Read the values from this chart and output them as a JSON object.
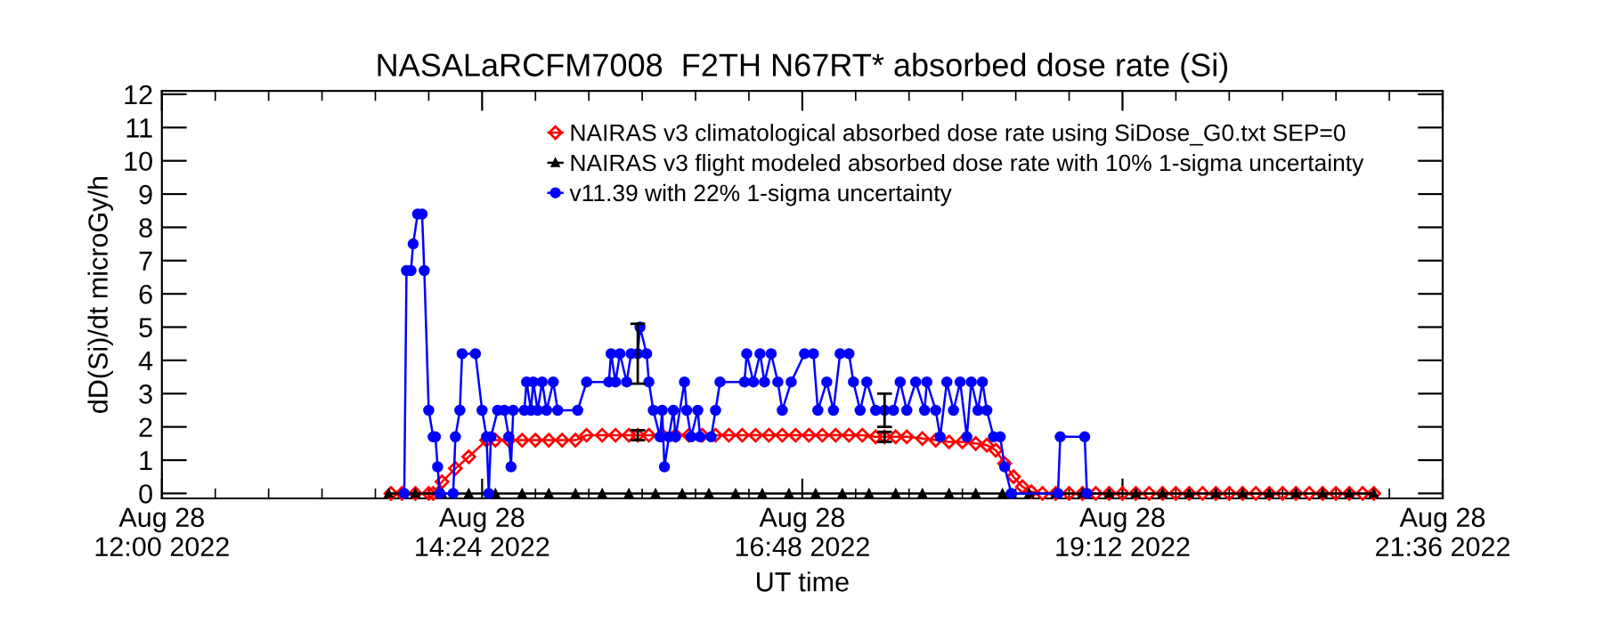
{
  "chart_data": {
    "type": "line",
    "title": "NASALaRCFM7008  F2TH N67RT* absorbed dose rate (Si)",
    "xlabel": "UT time",
    "ylabel": "dD(Si)/dt microGy/h",
    "xlim": [
      "2022-08-28T12:00",
      "2022-08-28T21:36"
    ],
    "xticks": [
      {
        "value": "2022-08-28T12:00",
        "label": "Aug 28\n12:00 2022"
      },
      {
        "value": "2022-08-28T14:24",
        "label": "Aug 28\n14:24 2022"
      },
      {
        "value": "2022-08-28T16:48",
        "label": "Aug 28\n16:48 2022"
      },
      {
        "value": "2022-08-28T19:12",
        "label": "Aug 28\n19:12 2022"
      },
      {
        "value": "2022-08-28T21:36",
        "label": "Aug 28\n21:36 2022"
      }
    ],
    "ylim": [
      -0.15,
      12.1
    ],
    "yticks": [
      0,
      1,
      2,
      3,
      4,
      5,
      6,
      7,
      8,
      9,
      10,
      11,
      12
    ],
    "grid": false,
    "legend": "top",
    "series": [
      {
        "name": "NAIRAS v3 climatological absorbed dose rate using SiDose_G0.txt SEP=0",
        "color": "#ff0000",
        "marker": "diamond",
        "x": [
          "2022-08-28T13:43",
          "2022-08-28T13:48",
          "2022-08-28T13:54",
          "2022-08-28T14:00",
          "2022-08-28T14:02",
          "2022-08-28T14:06",
          "2022-08-28T14:12",
          "2022-08-28T14:18",
          "2022-08-28T14:26",
          "2022-08-28T14:30",
          "2022-08-28T14:36",
          "2022-08-28T14:42",
          "2022-08-28T14:48",
          "2022-08-28T14:54",
          "2022-08-28T15:00",
          "2022-08-28T15:06",
          "2022-08-28T15:11",
          "2022-08-28T15:18",
          "2022-08-28T15:24",
          "2022-08-28T15:30",
          "2022-08-28T15:34",
          "2022-08-28T15:39",
          "2022-08-28T15:45",
          "2022-08-28T15:51",
          "2022-08-28T15:57",
          "2022-08-28T16:03",
          "2022-08-28T16:09",
          "2022-08-28T16:15",
          "2022-08-28T16:21",
          "2022-08-28T16:27",
          "2022-08-28T16:33",
          "2022-08-28T16:39",
          "2022-08-28T16:45",
          "2022-08-28T16:51",
          "2022-08-28T16:57",
          "2022-08-28T17:03",
          "2022-08-28T17:09",
          "2022-08-28T17:15",
          "2022-08-28T17:21",
          "2022-08-28T17:25",
          "2022-08-28T17:30",
          "2022-08-28T17:35",
          "2022-08-28T17:42",
          "2022-08-28T17:48",
          "2022-08-28T17:54",
          "2022-08-28T18:00",
          "2022-08-28T18:06",
          "2022-08-28T18:11",
          "2022-08-28T18:15",
          "2022-08-28T18:19",
          "2022-08-28T18:23",
          "2022-08-28T18:27",
          "2022-08-28T18:31",
          "2022-08-28T18:36",
          "2022-08-28T18:42",
          "2022-08-28T18:48",
          "2022-08-28T18:54",
          "2022-08-28T19:00",
          "2022-08-28T19:06",
          "2022-08-28T19:12",
          "2022-08-28T19:18",
          "2022-08-28T19:24",
          "2022-08-28T19:30",
          "2022-08-28T19:36",
          "2022-08-28T19:42",
          "2022-08-28T19:48",
          "2022-08-28T19:54",
          "2022-08-28T20:00",
          "2022-08-28T20:06",
          "2022-08-28T20:12",
          "2022-08-28T20:18",
          "2022-08-28T20:24",
          "2022-08-28T20:30",
          "2022-08-28T20:36",
          "2022-08-28T20:42",
          "2022-08-28T20:48",
          "2022-08-28T20:54",
          "2022-08-28T21:00",
          "2022-08-28T21:05"
        ],
        "values": [
          0,
          0,
          0,
          0,
          0,
          0.35,
          0.75,
          1.1,
          1.6,
          1.6,
          1.6,
          1.6,
          1.6,
          1.6,
          1.6,
          1.6,
          1.75,
          1.75,
          1.75,
          1.75,
          1.75,
          1.75,
          1.75,
          1.75,
          1.75,
          1.75,
          1.75,
          1.75,
          1.75,
          1.75,
          1.75,
          1.75,
          1.75,
          1.75,
          1.75,
          1.75,
          1.75,
          1.75,
          1.7,
          1.7,
          1.7,
          1.7,
          1.65,
          1.6,
          1.55,
          1.55,
          1.5,
          1.45,
          1.3,
          0.9,
          0.5,
          0.2,
          0.05,
          0,
          0,
          0,
          0,
          0,
          0,
          0,
          0,
          0,
          0,
          0,
          0,
          0,
          0,
          0,
          0,
          0,
          0,
          0,
          0,
          0,
          0,
          0,
          0,
          0,
          0
        ],
        "errors": [
          null,
          null,
          null,
          null,
          null,
          null,
          null,
          null,
          null,
          null,
          null,
          null,
          null,
          null,
          null,
          null,
          null,
          null,
          null,
          null,
          0.15,
          null,
          null,
          null,
          null,
          null,
          null,
          null,
          null,
          null,
          null,
          null,
          null,
          null,
          null,
          null,
          null,
          null,
          null,
          0.15,
          null,
          null,
          null,
          null,
          null,
          null,
          null,
          null,
          null,
          null,
          null,
          null,
          null,
          null,
          null,
          null,
          null,
          null,
          null,
          null,
          null,
          null,
          null,
          null,
          null,
          null,
          null,
          null,
          null,
          null,
          null,
          null,
          null,
          null,
          null,
          null,
          null,
          null,
          null
        ]
      },
      {
        "name": "NAIRAS v3 flight modeled absorbed dose rate with 10% 1-sigma uncertainty",
        "color": "#000000",
        "marker": "triangle",
        "x": [
          "2022-08-28T13:42",
          "2022-08-28T13:54",
          "2022-08-28T14:06",
          "2022-08-28T14:18",
          "2022-08-28T14:30",
          "2022-08-28T14:42",
          "2022-08-28T14:54",
          "2022-08-28T15:06",
          "2022-08-28T15:18",
          "2022-08-28T15:30",
          "2022-08-28T15:42",
          "2022-08-28T15:54",
          "2022-08-28T16:06",
          "2022-08-28T16:18",
          "2022-08-28T16:30",
          "2022-08-28T16:42",
          "2022-08-28T16:54",
          "2022-08-28T17:06",
          "2022-08-28T17:18",
          "2022-08-28T17:30",
          "2022-08-28T17:42",
          "2022-08-28T17:54",
          "2022-08-28T18:06",
          "2022-08-28T18:18",
          "2022-08-28T18:30",
          "2022-08-28T18:42",
          "2022-08-28T18:54",
          "2022-08-28T19:06",
          "2022-08-28T19:18",
          "2022-08-28T19:30",
          "2022-08-28T19:42",
          "2022-08-28T19:54",
          "2022-08-28T20:06",
          "2022-08-28T20:18",
          "2022-08-28T20:30",
          "2022-08-28T20:42",
          "2022-08-28T20:54",
          "2022-08-28T21:05"
        ],
        "values": [
          0,
          0,
          0,
          0,
          0,
          0,
          0,
          0,
          0,
          0,
          0,
          0,
          0,
          0,
          0,
          0,
          0,
          0,
          0,
          0,
          0,
          0,
          0,
          0,
          0,
          0,
          0,
          0,
          0,
          0,
          0,
          0,
          0,
          0,
          0,
          0,
          0,
          0
        ]
      },
      {
        "name": "v11.39 with 22% 1-sigma uncertainty",
        "color": "#0000ff",
        "marker": "circle",
        "x": [
          "2022-08-28T13:49",
          "2022-08-28T13:50",
          "2022-08-28T13:52",
          "2022-08-28T13:53",
          "2022-08-28T13:55",
          "2022-08-28T13:57",
          "2022-08-28T13:58",
          "2022-08-28T14:00",
          "2022-08-28T14:02",
          "2022-08-28T14:03",
          "2022-08-28T14:04",
          "2022-08-28T14:05",
          "2022-08-28T14:11",
          "2022-08-28T14:12",
          "2022-08-28T14:14",
          "2022-08-28T14:15",
          "2022-08-28T14:21",
          "2022-08-28T14:24",
          "2022-08-28T14:26",
          "2022-08-28T14:27",
          "2022-08-28T14:28",
          "2022-08-28T14:31",
          "2022-08-28T14:34",
          "2022-08-28T14:36",
          "2022-08-28T14:37",
          "2022-08-28T14:38",
          "2022-08-28T14:43",
          "2022-08-28T14:44",
          "2022-08-28T14:46",
          "2022-08-28T14:47",
          "2022-08-28T14:49",
          "2022-08-28T14:51",
          "2022-08-28T14:53",
          "2022-08-28T14:56",
          "2022-08-28T14:58",
          "2022-08-28T15:07",
          "2022-08-28T15:11",
          "2022-08-28T15:21",
          "2022-08-28T15:22",
          "2022-08-28T15:24",
          "2022-08-28T15:26",
          "2022-08-28T15:29",
          "2022-08-28T15:31",
          "2022-08-28T15:34",
          "2022-08-28T15:35",
          "2022-08-28T15:38",
          "2022-08-28T15:39",
          "2022-08-28T15:41",
          "2022-08-28T15:44",
          "2022-08-28T15:45",
          "2022-08-28T15:46",
          "2022-08-28T15:48",
          "2022-08-28T15:50",
          "2022-08-28T15:51",
          "2022-08-28T15:55",
          "2022-08-28T15:56",
          "2022-08-28T15:58",
          "2022-08-28T16:01",
          "2022-08-28T16:02",
          "2022-08-28T16:07",
          "2022-08-28T16:09",
          "2022-08-28T16:11",
          "2022-08-28T16:22",
          "2022-08-28T16:23",
          "2022-08-28T16:26",
          "2022-08-28T16:29",
          "2022-08-28T16:31",
          "2022-08-28T16:34",
          "2022-08-28T16:37",
          "2022-08-28T16:39",
          "2022-08-28T16:43",
          "2022-08-28T16:49",
          "2022-08-28T16:53",
          "2022-08-28T16:55",
          "2022-08-28T16:59",
          "2022-08-28T17:02",
          "2022-08-28T17:05",
          "2022-08-28T17:09",
          "2022-08-28T17:11",
          "2022-08-28T17:14",
          "2022-08-28T17:17",
          "2022-08-28T17:21",
          "2022-08-28T17:25",
          "2022-08-28T17:29",
          "2022-08-28T17:32",
          "2022-08-28T17:35",
          "2022-08-28T17:39",
          "2022-08-28T17:43",
          "2022-08-28T17:44",
          "2022-08-28T17:48",
          "2022-08-28T17:50",
          "2022-08-28T17:53",
          "2022-08-28T17:56",
          "2022-08-28T17:59",
          "2022-08-28T18:02",
          "2022-08-28T18:04",
          "2022-08-28T18:07",
          "2022-08-28T18:09",
          "2022-08-28T18:11",
          "2022-08-28T18:14",
          "2022-08-28T18:17",
          "2022-08-28T18:19",
          "2022-08-28T18:22",
          "2022-08-28T18:43",
          "2022-08-28T18:44",
          "2022-08-28T18:55",
          "2022-08-28T18:56"
        ],
        "values": [
          0,
          6.7,
          6.7,
          7.5,
          8.4,
          8.4,
          6.7,
          2.5,
          1.7,
          1.7,
          0.8,
          0,
          0,
          1.7,
          2.5,
          4.2,
          4.2,
          2.5,
          1.7,
          0,
          1.7,
          2.5,
          2.5,
          1.7,
          0.8,
          2.5,
          2.5,
          3.35,
          2.5,
          3.35,
          2.5,
          3.35,
          2.5,
          3.35,
          2.5,
          2.5,
          3.35,
          3.35,
          4.2,
          3.35,
          4.2,
          3.35,
          4.2,
          4.2,
          5.0,
          4.2,
          3.35,
          2.5,
          1.7,
          2.5,
          0.8,
          1.7,
          2.5,
          1.7,
          3.35,
          2.5,
          1.7,
          2.5,
          1.7,
          1.7,
          2.5,
          3.35,
          3.35,
          4.2,
          3.35,
          4.2,
          3.35,
          4.2,
          3.35,
          2.5,
          3.35,
          4.2,
          4.2,
          2.5,
          3.35,
          2.5,
          4.2,
          4.2,
          3.35,
          2.5,
          3.35,
          2.5,
          2.5,
          2.5,
          3.35,
          2.5,
          3.35,
          2.5,
          3.35,
          2.5,
          1.7,
          3.35,
          2.5,
          3.35,
          1.7,
          3.35,
          2.5,
          3.35,
          2.5,
          1.7,
          1.7,
          0.8,
          0,
          0,
          1.7,
          1.7,
          0
        ],
        "errors": [
          null,
          null,
          null,
          null,
          null,
          null,
          null,
          null,
          null,
          null,
          null,
          null,
          null,
          null,
          null,
          null,
          null,
          null,
          null,
          null,
          null,
          null,
          null,
          null,
          null,
          null,
          null,
          null,
          null,
          null,
          null,
          null,
          null,
          null,
          null,
          null,
          null,
          null,
          null,
          null,
          null,
          null,
          null,
          0.9,
          null,
          null,
          null,
          null,
          null,
          null,
          null,
          null,
          null,
          null,
          null,
          null,
          null,
          null,
          null,
          null,
          null,
          null,
          null,
          null,
          null,
          null,
          null,
          null,
          null,
          null,
          null,
          null,
          null,
          null,
          null,
          null,
          null,
          null,
          null,
          null,
          null,
          null,
          0.5,
          null,
          null,
          null,
          null,
          null,
          null,
          null,
          null,
          null,
          null,
          null,
          null,
          null,
          null,
          null,
          null,
          null,
          null,
          null,
          null,
          null,
          null,
          null,
          null
        ]
      }
    ]
  }
}
